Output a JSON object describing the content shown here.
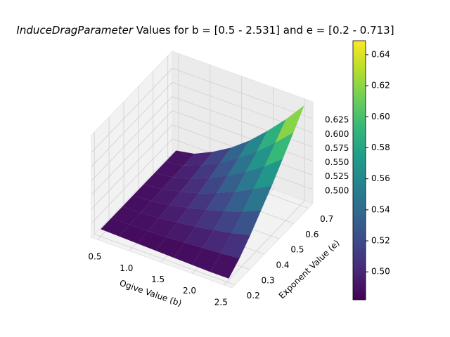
{
  "chart_data": {
    "type": "surface3d",
    "title_var": "InduceDragParameter",
    "title": " Values for b = [0.5 - 2.531] and e = [0.2 - 0.713]",
    "xlabel": "Ogive Value (b)",
    "ylabel": "Exponent Value (e)",
    "x": [
      0.5,
      0.79,
      1.08,
      1.37,
      1.66,
      1.95,
      2.24,
      2.531
    ],
    "y": [
      0.2,
      0.273,
      0.347,
      0.42,
      0.493,
      0.567,
      0.64,
      0.713
    ],
    "z": [
      [
        0.488,
        0.487,
        0.486,
        0.485,
        0.484,
        0.483,
        0.482,
        0.482
      ],
      [
        0.488,
        0.488,
        0.488,
        0.489,
        0.491,
        0.493,
        0.495,
        0.498
      ],
      [
        0.488,
        0.489,
        0.491,
        0.495,
        0.499,
        0.505,
        0.511,
        0.519
      ],
      [
        0.488,
        0.49,
        0.494,
        0.501,
        0.509,
        0.518,
        0.529,
        0.543
      ],
      [
        0.488,
        0.491,
        0.498,
        0.507,
        0.519,
        0.533,
        0.549,
        0.567
      ],
      [
        0.488,
        0.492,
        0.501,
        0.514,
        0.53,
        0.548,
        0.569,
        0.594
      ],
      [
        0.488,
        0.493,
        0.505,
        0.521,
        0.541,
        0.564,
        0.591,
        0.621
      ],
      [
        0.488,
        0.494,
        0.509,
        0.528,
        0.552,
        0.581,
        0.613,
        0.649
      ]
    ],
    "xlim": [
      0.4,
      2.63
    ],
    "ylim": [
      0.18,
      0.73
    ],
    "zlim": [
      0.475,
      0.655
    ],
    "xticks": [
      0.5,
      {
        "value": 1,
        "label": "1.0"
      },
      1.5,
      {
        "value": 2,
        "label": "2.0"
      },
      2.5
    ],
    "yticks": [
      0.2,
      0.3,
      0.4,
      0.5,
      0.6,
      0.7
    ],
    "zticks": [
      {
        "value": 0.5,
        "label": "0.500"
      },
      0.525,
      {
        "value": 0.55,
        "label": "0.550"
      },
      0.575,
      {
        "value": 0.6,
        "label": "0.600"
      },
      0.625
    ],
    "colormap": "viridis",
    "clim": [
      0.482,
      0.649
    ],
    "cbar_ticks": [
      {
        "value": 0.5,
        "label": "0.50"
      },
      {
        "value": 0.52,
        "label": "0.52"
      },
      {
        "value": 0.54,
        "label": "0.54"
      },
      {
        "value": 0.56,
        "label": "0.56"
      },
      {
        "value": 0.58,
        "label": "0.58"
      },
      {
        "value": 0.6,
        "label": "0.60"
      },
      {
        "value": 0.62,
        "label": "0.62"
      },
      {
        "value": 0.64,
        "label": "0.64"
      }
    ],
    "grid": true
  }
}
